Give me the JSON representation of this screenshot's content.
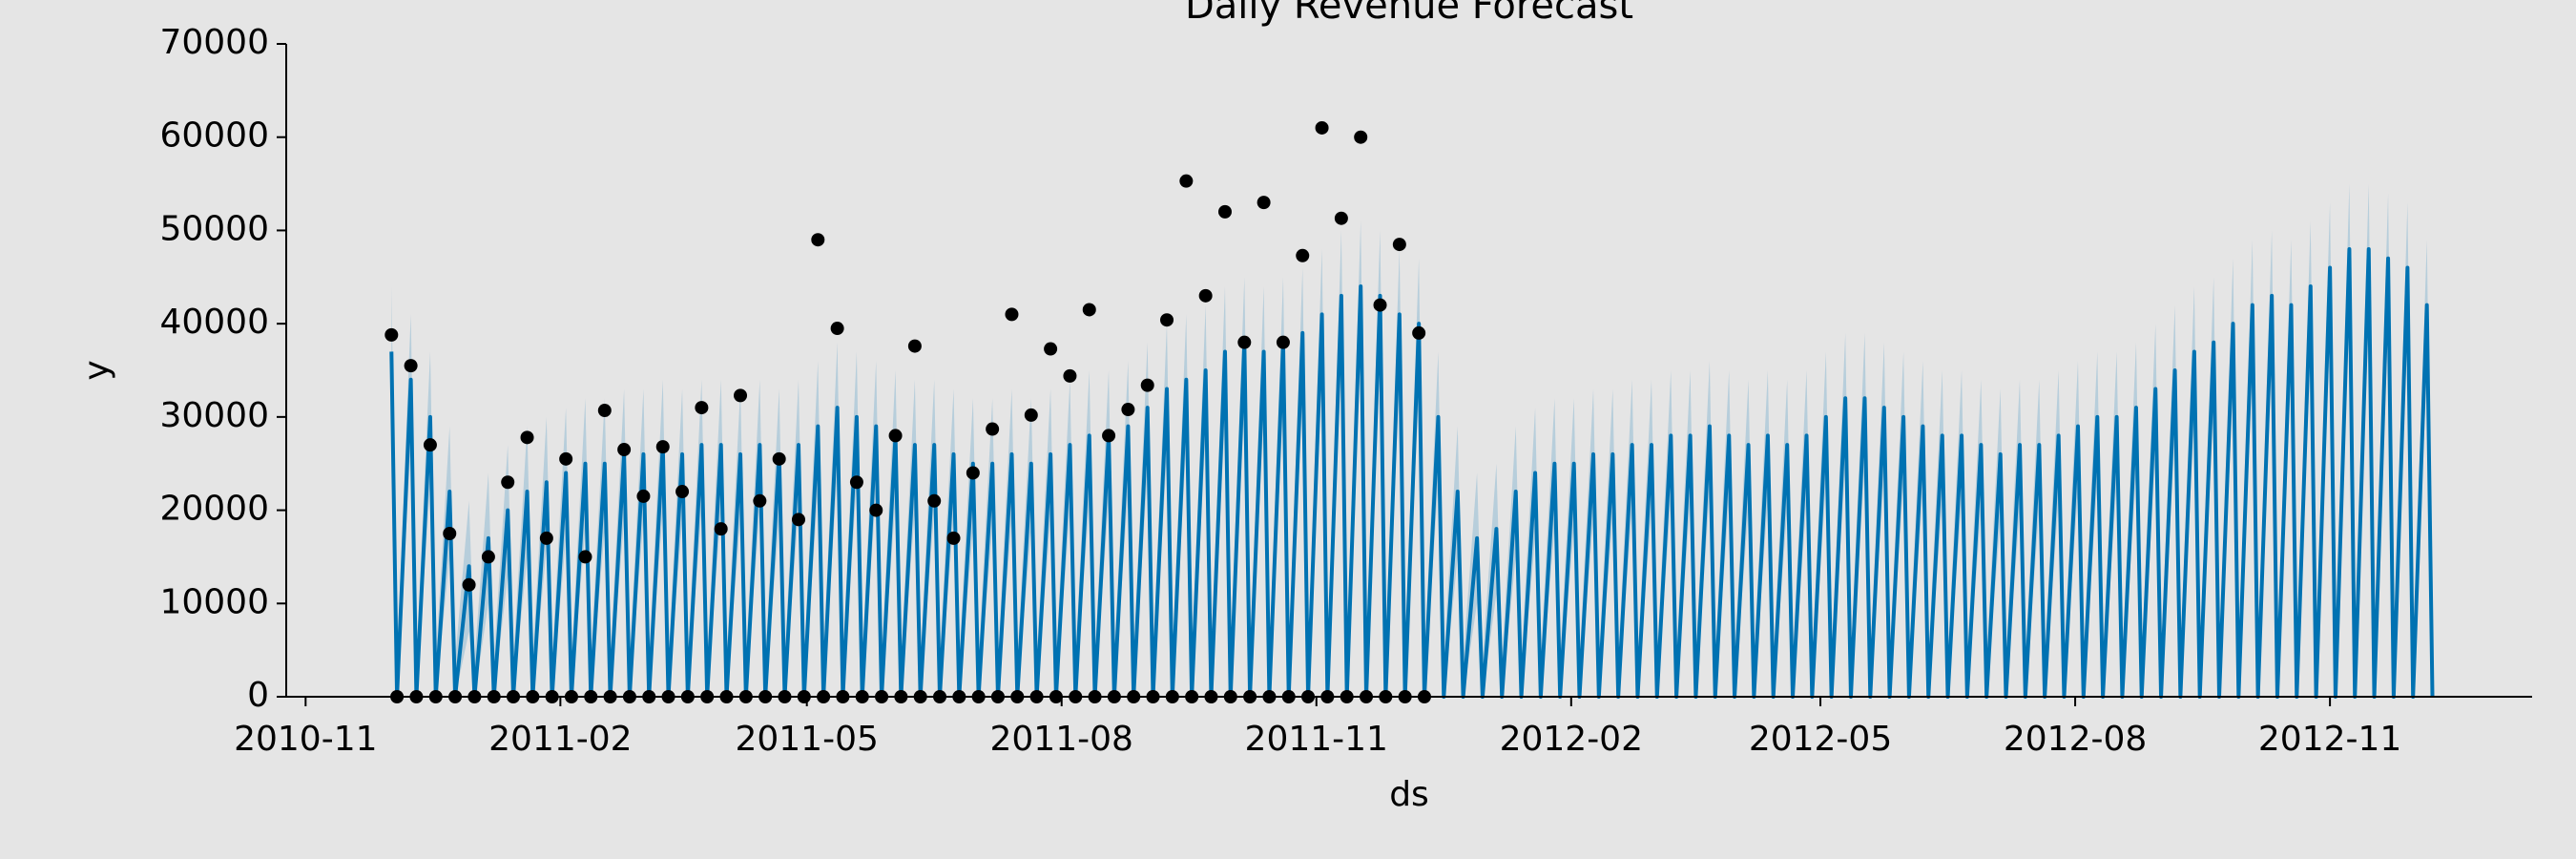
{
  "chart_data": {
    "type": "line",
    "title": "Daily Revenue Forecast",
    "xlabel": "ds",
    "ylabel": "y",
    "xlim": [
      "2010-10-25",
      "2013-01-13"
    ],
    "ylim": [
      0,
      70000
    ],
    "xticks": [
      {
        "value": "2010-11-01",
        "label": "2010-11"
      },
      {
        "value": "2011-02-01",
        "label": "2011-02"
      },
      {
        "value": "2011-05-01",
        "label": "2011-05"
      },
      {
        "value": "2011-08-01",
        "label": "2011-08"
      },
      {
        "value": "2011-11-01",
        "label": "2011-11"
      },
      {
        "value": "2012-02-01",
        "label": "2012-02"
      },
      {
        "value": "2012-05-01",
        "label": "2012-05"
      },
      {
        "value": "2012-08-01",
        "label": "2012-08"
      },
      {
        "value": "2012-11-01",
        "label": "2012-11"
      }
    ],
    "yticks": [
      0,
      10000,
      20000,
      30000,
      40000,
      50000,
      60000,
      70000
    ],
    "grid": false,
    "forecast": {
      "color": "#0072B2",
      "band_color": "#0072B2",
      "x": [
        "2010-12-02",
        "2010-12-04",
        "2010-12-09",
        "2010-12-11",
        "2010-12-16",
        "2010-12-18",
        "2010-12-23",
        "2010-12-25",
        "2010-12-30",
        "2011-01-01",
        "2011-01-06",
        "2011-01-08",
        "2011-01-13",
        "2011-01-15",
        "2011-01-20",
        "2011-01-22",
        "2011-01-27",
        "2011-01-29",
        "2011-02-03",
        "2011-02-05",
        "2011-02-10",
        "2011-02-12",
        "2011-02-17",
        "2011-02-19",
        "2011-02-24",
        "2011-02-26",
        "2011-03-03",
        "2011-03-05",
        "2011-03-10",
        "2011-03-12",
        "2011-03-17",
        "2011-03-19",
        "2011-03-24",
        "2011-03-26",
        "2011-03-31",
        "2011-04-02",
        "2011-04-07",
        "2011-04-09",
        "2011-04-14",
        "2011-04-16",
        "2011-04-21",
        "2011-04-23",
        "2011-04-28",
        "2011-04-30",
        "2011-05-05",
        "2011-05-07",
        "2011-05-12",
        "2011-05-14",
        "2011-05-19",
        "2011-05-21",
        "2011-05-26",
        "2011-05-28",
        "2011-06-02",
        "2011-06-04",
        "2011-06-09",
        "2011-06-11",
        "2011-06-16",
        "2011-06-18",
        "2011-06-23",
        "2011-06-25",
        "2011-06-30",
        "2011-07-02",
        "2011-07-07",
        "2011-07-09",
        "2011-07-14",
        "2011-07-16",
        "2011-07-21",
        "2011-07-23",
        "2011-07-28",
        "2011-07-30",
        "2011-08-04",
        "2011-08-06",
        "2011-08-11",
        "2011-08-13",
        "2011-08-18",
        "2011-08-20",
        "2011-08-25",
        "2011-08-27",
        "2011-09-01",
        "2011-09-03",
        "2011-09-08",
        "2011-09-10",
        "2011-09-15",
        "2011-09-17",
        "2011-09-22",
        "2011-09-24",
        "2011-09-29",
        "2011-10-01",
        "2011-10-06",
        "2011-10-08",
        "2011-10-13",
        "2011-10-15",
        "2011-10-20",
        "2011-10-22",
        "2011-10-27",
        "2011-10-29",
        "2011-11-03",
        "2011-11-05",
        "2011-11-10",
        "2011-11-12",
        "2011-11-17",
        "2011-11-19",
        "2011-11-24",
        "2011-11-26",
        "2011-12-01",
        "2011-12-03",
        "2011-12-08",
        "2011-12-10",
        "2011-12-15",
        "2011-12-17",
        "2011-12-22",
        "2011-12-24",
        "2011-12-29",
        "2011-12-31",
        "2012-01-05",
        "2012-01-07",
        "2012-01-12",
        "2012-01-14",
        "2012-01-19",
        "2012-01-21",
        "2012-01-26",
        "2012-01-28",
        "2012-02-02",
        "2012-02-04",
        "2012-02-09",
        "2012-02-11",
        "2012-02-16",
        "2012-02-18",
        "2012-02-23",
        "2012-02-25",
        "2012-03-01",
        "2012-03-03",
        "2012-03-08",
        "2012-03-10",
        "2012-03-15",
        "2012-03-17",
        "2012-03-22",
        "2012-03-24",
        "2012-03-29",
        "2012-03-31",
        "2012-04-05",
        "2012-04-07",
        "2012-04-12",
        "2012-04-14",
        "2012-04-19",
        "2012-04-21",
        "2012-04-26",
        "2012-04-28",
        "2012-05-03",
        "2012-05-05",
        "2012-05-10",
        "2012-05-12",
        "2012-05-17",
        "2012-05-19",
        "2012-05-24",
        "2012-05-26",
        "2012-05-31",
        "2012-06-02",
        "2012-06-07",
        "2012-06-09",
        "2012-06-14",
        "2012-06-16",
        "2012-06-21",
        "2012-06-23",
        "2012-06-28",
        "2012-06-30",
        "2012-07-05",
        "2012-07-07",
        "2012-07-12",
        "2012-07-14",
        "2012-07-19",
        "2012-07-21",
        "2012-07-26",
        "2012-07-28",
        "2012-08-02",
        "2012-08-04",
        "2012-08-09",
        "2012-08-11",
        "2012-08-16",
        "2012-08-18",
        "2012-08-23",
        "2012-08-25",
        "2012-08-30",
        "2012-09-01",
        "2012-09-06",
        "2012-09-08",
        "2012-09-13",
        "2012-09-15",
        "2012-09-20",
        "2012-09-22",
        "2012-09-27",
        "2012-09-29",
        "2012-10-04",
        "2012-10-06",
        "2012-10-11",
        "2012-10-13",
        "2012-10-18",
        "2012-10-20",
        "2012-10-25",
        "2012-10-27",
        "2012-11-01",
        "2012-11-03",
        "2012-11-08",
        "2012-11-10",
        "2012-11-15",
        "2012-11-17",
        "2012-11-22",
        "2012-11-24",
        "2012-11-29",
        "2012-12-01",
        "2012-12-06",
        "2012-12-08"
      ],
      "values": [
        37000,
        0,
        34000,
        0,
        30000,
        0,
        22000,
        0,
        14000,
        0,
        17000,
        0,
        20000,
        0,
        22000,
        0,
        23000,
        0,
        24000,
        0,
        25000,
        0,
        25000,
        0,
        26000,
        0,
        26000,
        0,
        27000,
        0,
        26000,
        0,
        27000,
        0,
        27000,
        0,
        26000,
        0,
        27000,
        0,
        26000,
        0,
        27000,
        0,
        29000,
        0,
        31000,
        0,
        30000,
        0,
        29000,
        0,
        28000,
        0,
        27000,
        0,
        27000,
        0,
        26000,
        0,
        25000,
        0,
        25000,
        0,
        26000,
        0,
        25000,
        0,
        26000,
        0,
        27000,
        0,
        28000,
        0,
        28000,
        0,
        29000,
        0,
        31000,
        0,
        33000,
        0,
        34000,
        0,
        35000,
        0,
        37000,
        0,
        38000,
        0,
        37000,
        0,
        38000,
        0,
        39000,
        0,
        41000,
        0,
        43000,
        0,
        44000,
        0,
        43000,
        0,
        41000,
        0,
        40000,
        0,
        30000,
        0,
        22000,
        0,
        17000,
        0,
        18000,
        0,
        22000,
        0,
        24000,
        0,
        25000,
        0,
        25000,
        0,
        26000,
        0,
        26000,
        0,
        27000,
        0,
        27000,
        0,
        28000,
        0,
        28000,
        0,
        29000,
        0,
        28000,
        0,
        27000,
        0,
        28000,
        0,
        27000,
        0,
        28000,
        0,
        30000,
        0,
        32000,
        0,
        32000,
        0,
        31000,
        0,
        30000,
        0,
        29000,
        0,
        28000,
        0,
        28000,
        0,
        27000,
        0,
        26000,
        0,
        27000,
        0,
        27000,
        0,
        28000,
        0,
        29000,
        0,
        30000,
        0,
        30000,
        0,
        31000,
        0,
        33000,
        0,
        35000,
        0,
        37000,
        0,
        38000,
        0,
        40000,
        0,
        42000,
        0,
        43000,
        0,
        42000,
        0,
        44000,
        0,
        46000,
        0,
        48000,
        0,
        48000,
        0,
        47000,
        0,
        46000,
        0,
        42000,
        0
      ],
      "lower": [
        30000,
        0,
        27000,
        0,
        23000,
        0,
        15000,
        0,
        7000,
        0,
        10000,
        0,
        13000,
        0,
        15000,
        0,
        16000,
        0,
        17000,
        0,
        18000,
        0,
        18000,
        0,
        19000,
        0,
        19000,
        0,
        20000,
        0,
        19000,
        0,
        20000,
        0,
        20000,
        0,
        19000,
        0,
        20000,
        0,
        19000,
        0,
        20000,
        0,
        22000,
        0,
        24000,
        0,
        23000,
        0,
        22000,
        0,
        21000,
        0,
        20000,
        0,
        20000,
        0,
        19000,
        0,
        18000,
        0,
        18000,
        0,
        19000,
        0,
        18000,
        0,
        19000,
        0,
        20000,
        0,
        21000,
        0,
        21000,
        0,
        22000,
        0,
        24000,
        0,
        26000,
        0,
        27000,
        0,
        28000,
        0,
        30000,
        0,
        31000,
        0,
        30000,
        0,
        31000,
        0,
        32000,
        0,
        34000,
        0,
        36000,
        0,
        37000,
        0,
        36000,
        0,
        34000,
        0,
        33000,
        0,
        23000,
        0,
        15000,
        0,
        10000,
        0,
        11000,
        0,
        15000,
        0,
        17000,
        0,
        18000,
        0,
        18000,
        0,
        19000,
        0,
        19000,
        0,
        20000,
        0,
        20000,
        0,
        21000,
        0,
        21000,
        0,
        22000,
        0,
        21000,
        0,
        20000,
        0,
        21000,
        0,
        20000,
        0,
        21000,
        0,
        23000,
        0,
        25000,
        0,
        25000,
        0,
        24000,
        0,
        23000,
        0,
        22000,
        0,
        21000,
        0,
        21000,
        0,
        20000,
        0,
        19000,
        0,
        20000,
        0,
        20000,
        0,
        21000,
        0,
        22000,
        0,
        23000,
        0,
        23000,
        0,
        24000,
        0,
        26000,
        0,
        28000,
        0,
        30000,
        0,
        31000,
        0,
        33000,
        0,
        35000,
        0,
        36000,
        0,
        35000,
        0,
        37000,
        0,
        39000,
        0,
        41000,
        0,
        41000,
        0,
        40000,
        0,
        39000,
        0,
        35000,
        0
      ],
      "upper": [
        44000,
        4000,
        41000,
        4000,
        37000,
        4000,
        29000,
        4000,
        21000,
        4000,
        24000,
        4000,
        27000,
        4000,
        29000,
        4000,
        30000,
        4000,
        31000,
        4000,
        32000,
        4000,
        32000,
        4000,
        33000,
        4000,
        33000,
        4000,
        34000,
        4000,
        33000,
        4000,
        34000,
        4000,
        34000,
        4000,
        33000,
        4000,
        34000,
        4000,
        33000,
        4000,
        34000,
        4000,
        36000,
        4000,
        38000,
        4000,
        37000,
        4000,
        36000,
        4000,
        35000,
        4000,
        34000,
        4000,
        34000,
        4000,
        33000,
        4000,
        32000,
        4000,
        32000,
        4000,
        33000,
        4000,
        32000,
        4000,
        33000,
        4000,
        34000,
        4000,
        35000,
        4000,
        35000,
        4000,
        36000,
        4000,
        38000,
        4000,
        40000,
        4000,
        41000,
        4000,
        42000,
        4000,
        44000,
        4000,
        45000,
        4000,
        44000,
        4000,
        45000,
        4000,
        46000,
        4000,
        48000,
        4000,
        50000,
        4000,
        51000,
        4000,
        50000,
        4000,
        48000,
        4000,
        47000,
        4000,
        37000,
        4000,
        29000,
        4000,
        24000,
        4000,
        25000,
        4000,
        29000,
        4000,
        31000,
        4000,
        32000,
        4000,
        32000,
        4000,
        33000,
        4000,
        33000,
        4000,
        34000,
        4000,
        34000,
        4000,
        35000,
        4000,
        35000,
        4000,
        36000,
        4000,
        35000,
        4000,
        34000,
        4000,
        35000,
        4000,
        34000,
        4000,
        35000,
        4000,
        37000,
        4000,
        39000,
        4000,
        39000,
        4000,
        38000,
        4000,
        37000,
        4000,
        36000,
        4000,
        35000,
        4000,
        35000,
        4000,
        34000,
        4000,
        33000,
        4000,
        34000,
        4000,
        34000,
        4000,
        35000,
        4000,
        36000,
        4000,
        37000,
        4000,
        37000,
        4000,
        38000,
        4000,
        40000,
        4000,
        42000,
        4000,
        44000,
        4000,
        45000,
        4000,
        47000,
        4000,
        49000,
        4000,
        50000,
        4000,
        49000,
        4000,
        51000,
        4000,
        53000,
        4000,
        55000,
        4000,
        55000,
        4000,
        54000,
        4000,
        53000,
        4000,
        49000,
        4000
      ]
    },
    "observed": {
      "color": "#000000",
      "x": [
        "2010-12-02",
        "2010-12-04",
        "2010-12-09",
        "2010-12-11",
        "2010-12-16",
        "2010-12-18",
        "2010-12-23",
        "2010-12-25",
        "2010-12-30",
        "2011-01-01",
        "2011-01-06",
        "2011-01-08",
        "2011-01-13",
        "2011-01-15",
        "2011-01-20",
        "2011-01-22",
        "2011-01-27",
        "2011-01-29",
        "2011-02-03",
        "2011-02-05",
        "2011-02-10",
        "2011-02-12",
        "2011-02-17",
        "2011-02-19",
        "2011-02-24",
        "2011-02-26",
        "2011-03-03",
        "2011-03-05",
        "2011-03-10",
        "2011-03-12",
        "2011-03-17",
        "2011-03-19",
        "2011-03-24",
        "2011-03-26",
        "2011-03-31",
        "2011-04-02",
        "2011-04-07",
        "2011-04-09",
        "2011-04-14",
        "2011-04-16",
        "2011-04-21",
        "2011-04-23",
        "2011-04-28",
        "2011-04-30",
        "2011-05-05",
        "2011-05-07",
        "2011-05-12",
        "2011-05-14",
        "2011-05-19",
        "2011-05-21",
        "2011-05-26",
        "2011-05-28",
        "2011-06-02",
        "2011-06-04",
        "2011-06-09",
        "2011-06-11",
        "2011-06-16",
        "2011-06-18",
        "2011-06-23",
        "2011-06-25",
        "2011-06-30",
        "2011-07-02",
        "2011-07-07",
        "2011-07-09",
        "2011-07-14",
        "2011-07-16",
        "2011-07-21",
        "2011-07-23",
        "2011-07-28",
        "2011-07-30",
        "2011-08-04",
        "2011-08-06",
        "2011-08-11",
        "2011-08-13",
        "2011-08-18",
        "2011-08-20",
        "2011-08-25",
        "2011-08-27",
        "2011-09-01",
        "2011-09-03",
        "2011-09-08",
        "2011-09-10",
        "2011-09-15",
        "2011-09-17",
        "2011-09-22",
        "2011-09-24",
        "2011-09-29",
        "2011-10-01",
        "2011-10-06",
        "2011-10-08",
        "2011-10-13",
        "2011-10-15",
        "2011-10-20",
        "2011-10-22",
        "2011-10-27",
        "2011-10-29",
        "2011-11-03",
        "2011-11-05",
        "2011-11-10",
        "2011-11-12",
        "2011-11-17",
        "2011-11-19",
        "2011-11-24",
        "2011-11-26",
        "2011-12-01",
        "2011-12-03",
        "2011-12-08",
        "2011-12-10"
      ],
      "values": [
        38800,
        0,
        35500,
        0,
        27000,
        0,
        17500,
        0,
        12000,
        0,
        15000,
        0,
        23000,
        0,
        27800,
        0,
        17000,
        0,
        25500,
        0,
        15000,
        0,
        30700,
        0,
        26500,
        0,
        21500,
        0,
        26800,
        0,
        22000,
        0,
        31000,
        0,
        18000,
        0,
        32300,
        0,
        21000,
        0,
        25500,
        0,
        19000,
        0,
        49000,
        0,
        39500,
        0,
        23000,
        0,
        20000,
        0,
        28000,
        0,
        37600,
        0,
        21000,
        0,
        17000,
        0,
        24000,
        0,
        28700,
        0,
        41000,
        0,
        30200,
        0,
        37300,
        0,
        34400,
        0,
        41500,
        0,
        28000,
        0,
        30800,
        0,
        33400,
        0,
        40400,
        0,
        55300,
        0,
        43000,
        0,
        52000,
        0,
        38000,
        0,
        53000,
        0,
        38000,
        0,
        47300,
        0,
        61000,
        0,
        51300,
        0,
        60000,
        0,
        42000,
        0,
        48500,
        0,
        39000,
        0
      ]
    }
  }
}
